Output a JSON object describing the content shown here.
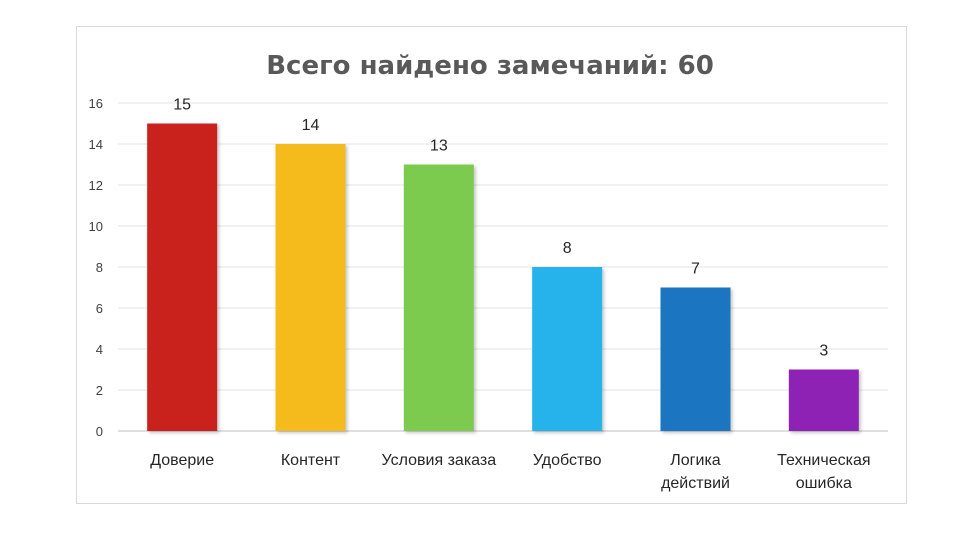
{
  "chart_data": {
    "type": "bar",
    "title": "Всего найдено замечаний: 60",
    "categories": [
      [
        "Доверие"
      ],
      [
        "Контент"
      ],
      [
        "Условия заказа"
      ],
      [
        "Удобство"
      ],
      [
        "Логика",
        "действий"
      ],
      [
        "Техническая",
        "ошибка"
      ]
    ],
    "values": [
      15,
      14,
      13,
      8,
      7,
      3
    ],
    "colors": [
      "#C9201F",
      "#F5BA1F",
      "#7BCB4F",
      "#25B2EB",
      "#1E74C1",
      "#8E23B4"
    ],
    "ylim": [
      0,
      16
    ],
    "yticks": [
      0,
      2,
      4,
      6,
      8,
      10,
      12,
      14,
      16
    ],
    "grid": true,
    "legend": "none"
  }
}
